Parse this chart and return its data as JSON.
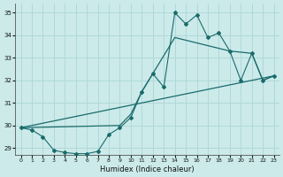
{
  "xlabel": "Humidex (Indice chaleur)",
  "bg_color": "#cceaea",
  "grid_color": "#b0d8d8",
  "line_color": "#1a6b6b",
  "xlim": [
    -0.5,
    23.5
  ],
  "ylim": [
    28.7,
    35.4
  ],
  "yticks": [
    29,
    30,
    31,
    32,
    33,
    34,
    35
  ],
  "xticks": [
    0,
    1,
    2,
    3,
    4,
    5,
    6,
    7,
    8,
    9,
    10,
    11,
    12,
    13,
    14,
    15,
    16,
    17,
    18,
    19,
    20,
    21,
    22,
    23
  ],
  "series1_x": [
    0,
    1,
    2,
    3,
    4,
    5,
    6,
    7,
    8,
    9,
    10,
    11,
    12,
    13,
    14,
    15,
    16,
    17,
    18,
    19,
    20,
    21,
    22,
    23
  ],
  "series1_y": [
    29.9,
    29.8,
    29.5,
    28.9,
    28.8,
    28.75,
    28.75,
    28.85,
    29.6,
    29.9,
    30.35,
    31.5,
    32.3,
    31.7,
    35.0,
    34.5,
    34.9,
    33.9,
    34.1,
    33.3,
    32.0,
    33.2,
    32.0,
    32.2
  ],
  "series2_x": [
    0,
    9,
    10,
    11,
    14,
    19,
    21,
    22,
    23
  ],
  "series2_y": [
    29.9,
    30.0,
    30.5,
    31.5,
    33.9,
    33.3,
    33.2,
    32.0,
    32.2
  ],
  "series3_x": [
    0,
    23
  ],
  "series3_y": [
    29.9,
    32.2
  ]
}
